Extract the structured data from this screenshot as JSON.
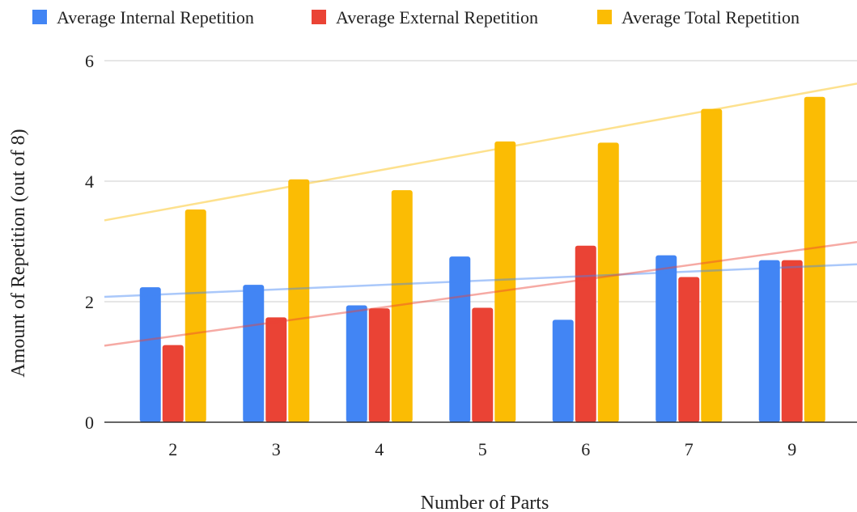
{
  "chart_data": {
    "type": "bar",
    "title": "",
    "xlabel": "Number of Parts",
    "ylabel": "Amount of Repetition (out of 8)",
    "categories": [
      "2",
      "3",
      "4",
      "5",
      "6",
      "7",
      "9"
    ],
    "ylim": [
      0,
      6
    ],
    "yticks": [
      "0",
      "2",
      "4",
      "6"
    ],
    "grid": true,
    "legend_position": "top",
    "series": [
      {
        "name": "Average Internal Repetition",
        "color": "#4285f4",
        "values": [
          2.24,
          2.28,
          1.94,
          2.75,
          1.7,
          2.77,
          2.69
        ],
        "trendline": [
          2.08,
          2.62
        ]
      },
      {
        "name": "Average External Repetition",
        "color": "#ea4335",
        "values": [
          1.28,
          1.74,
          1.89,
          1.9,
          2.93,
          2.41,
          2.69
        ],
        "trendline": [
          1.27,
          2.99
        ]
      },
      {
        "name": "Average Total Repetition",
        "color": "#fbbc04",
        "values": [
          3.53,
          4.03,
          3.85,
          4.66,
          4.64,
          5.2,
          5.4
        ],
        "trendline": [
          3.35,
          5.62
        ]
      }
    ]
  }
}
